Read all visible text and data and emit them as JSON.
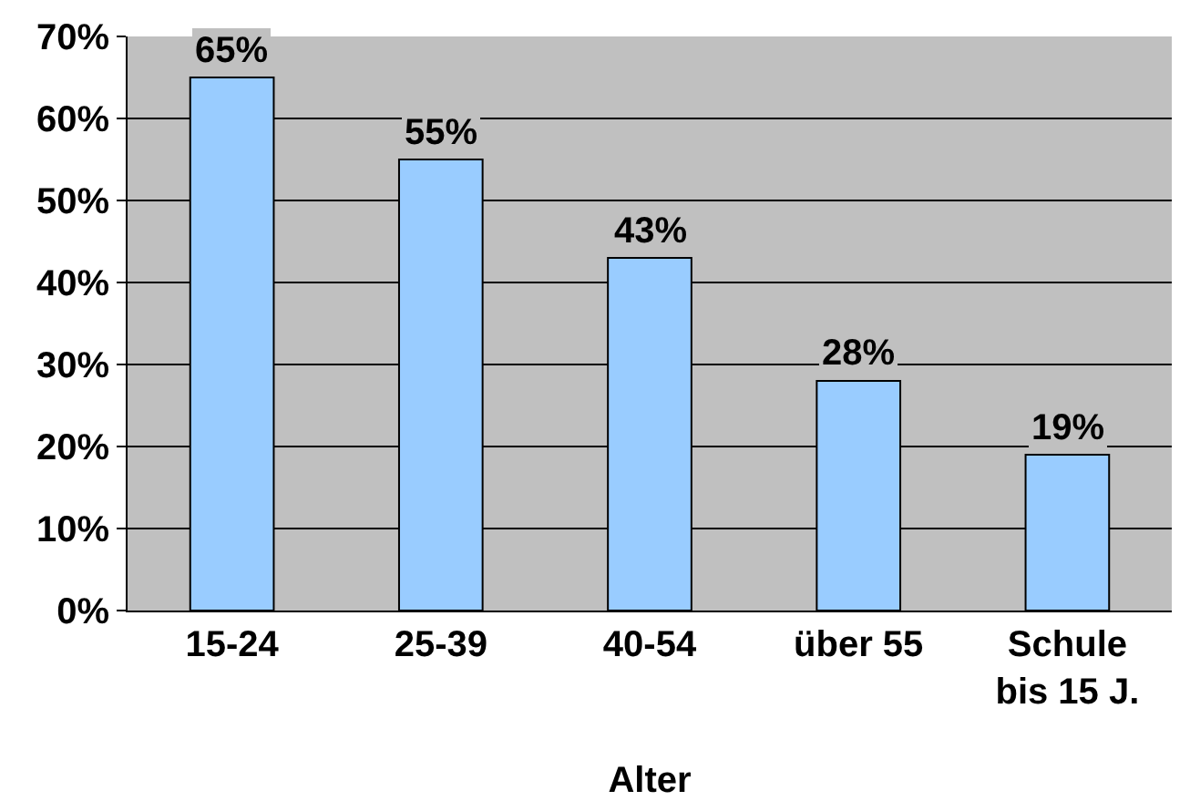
{
  "chart_data": {
    "type": "bar",
    "xlabel": "Alter",
    "categories": [
      "15-24",
      "25-39",
      "40-54",
      "über 55",
      "Schule bis 15 J."
    ],
    "values": [
      65,
      55,
      43,
      28,
      19
    ],
    "value_labels": [
      "65%",
      "55%",
      "43%",
      "28%",
      "19%"
    ],
    "color": "#99ccff",
    "ylim": [
      0,
      70
    ],
    "yticks": [
      {
        "value": 0,
        "label": "0%"
      },
      {
        "value": 10,
        "label": "10%"
      },
      {
        "value": 20,
        "label": "20%"
      },
      {
        "value": 30,
        "label": "30%"
      },
      {
        "value": 40,
        "label": "40%"
      },
      {
        "value": 50,
        "label": "50%"
      },
      {
        "value": 60,
        "label": "60%"
      },
      {
        "value": 70,
        "label": "70%"
      }
    ],
    "grid": "y"
  }
}
